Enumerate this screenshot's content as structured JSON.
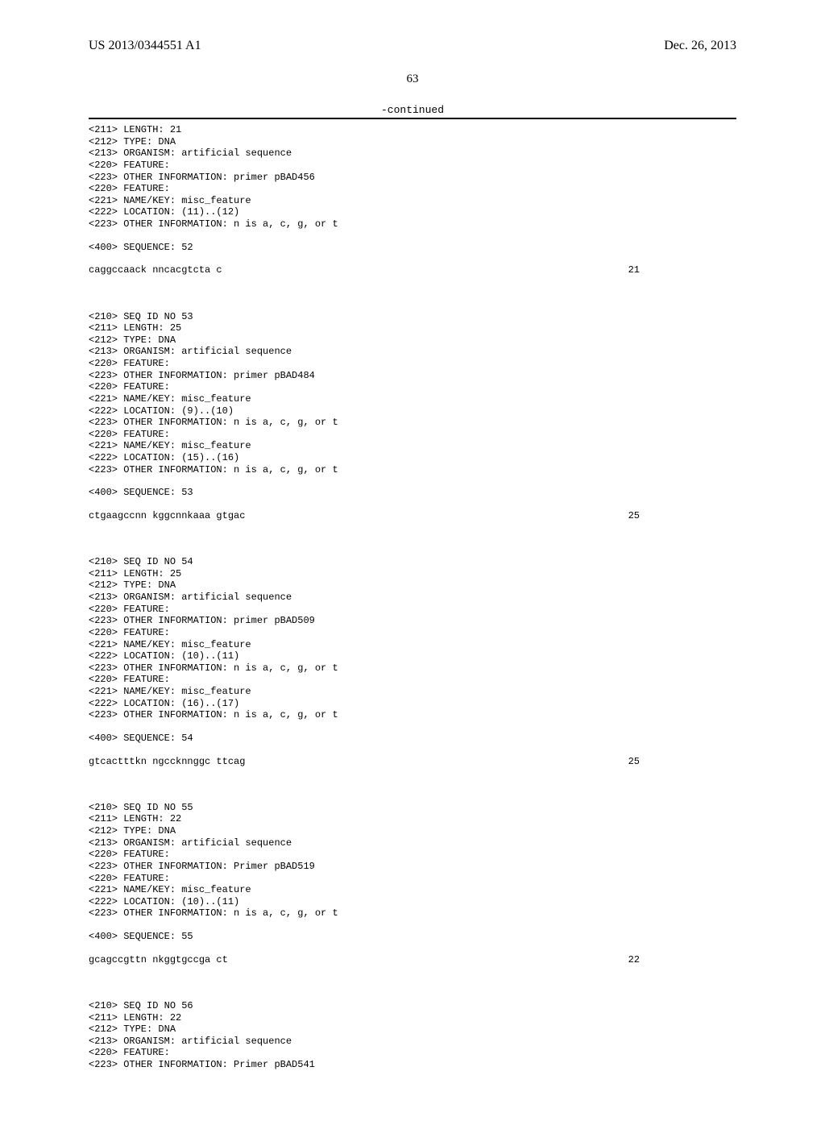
{
  "header": {
    "publication_number": "US 2013/0344551 A1",
    "publication_date": "Dec. 26, 2013"
  },
  "page_number": "63",
  "continued_label": "-continued",
  "entries": [
    {
      "lines": [
        "<211> LENGTH: 21",
        "<212> TYPE: DNA",
        "<213> ORGANISM: artificial sequence",
        "<220> FEATURE:",
        "<223> OTHER INFORMATION: primer pBAD456",
        "<220> FEATURE:",
        "<221> NAME/KEY: misc_feature",
        "<222> LOCATION: (11)..(12)",
        "<223> OTHER INFORMATION: n is a, c, g, or t"
      ],
      "sequence_header": "<400> SEQUENCE: 52",
      "sequence": "caggccaack nncacgtcta c",
      "length": "21"
    },
    {
      "lines": [
        "<210> SEQ ID NO 53",
        "<211> LENGTH: 25",
        "<212> TYPE: DNA",
        "<213> ORGANISM: artificial sequence",
        "<220> FEATURE:",
        "<223> OTHER INFORMATION: primer pBAD484",
        "<220> FEATURE:",
        "<221> NAME/KEY: misc_feature",
        "<222> LOCATION: (9)..(10)",
        "<223> OTHER INFORMATION: n is a, c, g, or t",
        "<220> FEATURE:",
        "<221> NAME/KEY: misc_feature",
        "<222> LOCATION: (15)..(16)",
        "<223> OTHER INFORMATION: n is a, c, g, or t"
      ],
      "sequence_header": "<400> SEQUENCE: 53",
      "sequence": "ctgaagccnn kggcnnkaaa gtgac",
      "length": "25"
    },
    {
      "lines": [
        "<210> SEQ ID NO 54",
        "<211> LENGTH: 25",
        "<212> TYPE: DNA",
        "<213> ORGANISM: artificial sequence",
        "<220> FEATURE:",
        "<223> OTHER INFORMATION: primer pBAD509",
        "<220> FEATURE:",
        "<221> NAME/KEY: misc_feature",
        "<222> LOCATION: (10)..(11)",
        "<223> OTHER INFORMATION: n is a, c, g, or t",
        "<220> FEATURE:",
        "<221> NAME/KEY: misc_feature",
        "<222> LOCATION: (16)..(17)",
        "<223> OTHER INFORMATION: n is a, c, g, or t"
      ],
      "sequence_header": "<400> SEQUENCE: 54",
      "sequence": "gtcactttkn ngccknnggc ttcag",
      "length": "25"
    },
    {
      "lines": [
        "<210> SEQ ID NO 55",
        "<211> LENGTH: 22",
        "<212> TYPE: DNA",
        "<213> ORGANISM: artificial sequence",
        "<220> FEATURE:",
        "<223> OTHER INFORMATION: Primer pBAD519",
        "<220> FEATURE:",
        "<221> NAME/KEY: misc_feature",
        "<222> LOCATION: (10)..(11)",
        "<223> OTHER INFORMATION: n is a, c, g, or t"
      ],
      "sequence_header": "<400> SEQUENCE: 55",
      "sequence": "gcagccgttn nkggtgccga ct",
      "length": "22"
    },
    {
      "lines": [
        "<210> SEQ ID NO 56",
        "<211> LENGTH: 22",
        "<212> TYPE: DNA",
        "<213> ORGANISM: artificial sequence",
        "<220> FEATURE:",
        "<223> OTHER INFORMATION: Primer pBAD541"
      ],
      "sequence_header": "",
      "sequence": "",
      "length": ""
    }
  ]
}
